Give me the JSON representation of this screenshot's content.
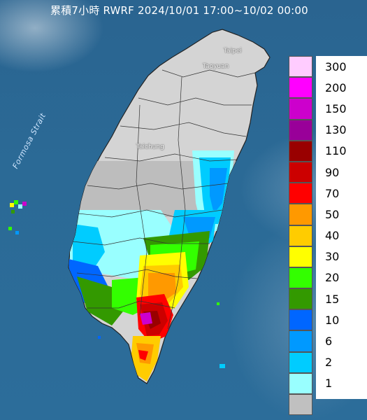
{
  "title": "累積7小時 RWRF 2024/10/01 17:00~10/02 00:00",
  "places": {
    "taipei": "Taipei",
    "taoyuan": "Taoyuan",
    "taichung": "Taichung"
  },
  "strait_label": "Formosa Strait",
  "legend": [
    {
      "label": "300",
      "color": "#ffccff"
    },
    {
      "label": "200",
      "color": "#ff00ff"
    },
    {
      "label": "150",
      "color": "#cc00cc"
    },
    {
      "label": "130",
      "color": "#990099"
    },
    {
      "label": "110",
      "color": "#990000"
    },
    {
      "label": "90",
      "color": "#cc0000"
    },
    {
      "label": "70",
      "color": "#ff0000"
    },
    {
      "label": "50",
      "color": "#ff9900"
    },
    {
      "label": "40",
      "color": "#ffcc00"
    },
    {
      "label": "30",
      "color": "#ffff00"
    },
    {
      "label": "20",
      "color": "#33ff00"
    },
    {
      "label": "15",
      "color": "#339900"
    },
    {
      "label": "10",
      "color": "#0066ff"
    },
    {
      "label": "6",
      "color": "#0099ff"
    },
    {
      "label": "2",
      "color": "#00ccff"
    },
    {
      "label": "1",
      "color": "#99ffff"
    },
    {
      "label": "",
      "color": "#c0c0c0"
    }
  ]
}
